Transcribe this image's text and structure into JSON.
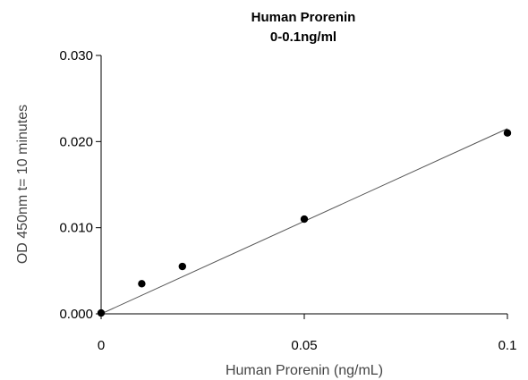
{
  "chart_data": {
    "type": "scatter",
    "title": "Human Prorenin",
    "subtitle": "0-0.1ng/ml",
    "xlabel": "Human Prorenin (ng/mL)",
    "ylabel": "OD 450nm t= 10 minutes",
    "xlim": [
      0,
      0.1
    ],
    "ylim": [
      0,
      0.03
    ],
    "x_ticks": [
      0,
      0.05,
      0.1
    ],
    "x_tick_labels": [
      "0",
      "0.05",
      "0.1"
    ],
    "y_ticks": [
      0,
      0.01,
      0.02,
      0.03
    ],
    "y_tick_labels": [
      "0.000",
      "0.010",
      "0.020",
      "0.030"
    ],
    "grid": false,
    "legend": "none",
    "series": [
      {
        "points": [
          {
            "x": 0,
            "y": 0.0001
          },
          {
            "x": 0.01,
            "y": 0.0035
          },
          {
            "x": 0.02,
            "y": 0.0055
          },
          {
            "x": 0.05,
            "y": 0.011
          },
          {
            "x": 0.1,
            "y": 0.021
          }
        ]
      }
    ],
    "trendline": {
      "type": "linear",
      "from": [
        0,
        0
      ],
      "to": [
        0.1,
        0.0215
      ]
    },
    "colors": {
      "points": "#000000",
      "trendline": "#555555",
      "axes": "#000000"
    }
  }
}
